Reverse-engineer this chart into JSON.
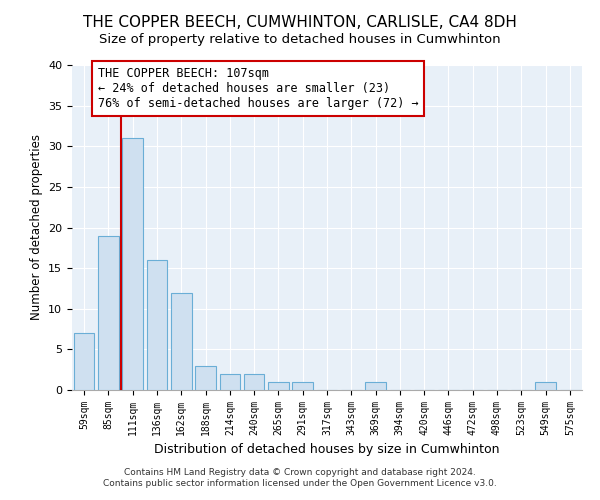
{
  "title": "THE COPPER BEECH, CUMWHINTON, CARLISLE, CA4 8DH",
  "subtitle": "Size of property relative to detached houses in Cumwhinton",
  "xlabel": "Distribution of detached houses by size in Cumwhinton",
  "ylabel": "Number of detached properties",
  "footer1": "Contains HM Land Registry data © Crown copyright and database right 2024.",
  "footer2": "Contains public sector information licensed under the Open Government Licence v3.0.",
  "categories": [
    "59sqm",
    "85sqm",
    "111sqm",
    "136sqm",
    "162sqm",
    "188sqm",
    "214sqm",
    "240sqm",
    "265sqm",
    "291sqm",
    "317sqm",
    "343sqm",
    "369sqm",
    "394sqm",
    "420sqm",
    "446sqm",
    "472sqm",
    "498sqm",
    "523sqm",
    "549sqm",
    "575sqm"
  ],
  "values": [
    7,
    19,
    31,
    16,
    12,
    3,
    2,
    2,
    1,
    1,
    0,
    0,
    1,
    0,
    0,
    0,
    0,
    0,
    0,
    1,
    0
  ],
  "bar_color": "#cfe0f0",
  "bar_edge_color": "#6aaed6",
  "highlight_color": "#cc0000",
  "annotation_title": "THE COPPER BEECH: 107sqm",
  "annotation_line1": "← 24% of detached houses are smaller (23)",
  "annotation_line2": "76% of semi-detached houses are larger (72) →",
  "annotation_box_color": "#cc0000",
  "ylim": [
    0,
    40
  ],
  "yticks": [
    0,
    5,
    10,
    15,
    20,
    25,
    30,
    35,
    40
  ],
  "fig_bg_color": "#ffffff",
  "plot_bg_color": "#e8f0f8",
  "grid_color": "#ffffff",
  "title_fontsize": 11,
  "subtitle_fontsize": 9.5,
  "xlabel_fontsize": 9,
  "ylabel_fontsize": 8.5
}
